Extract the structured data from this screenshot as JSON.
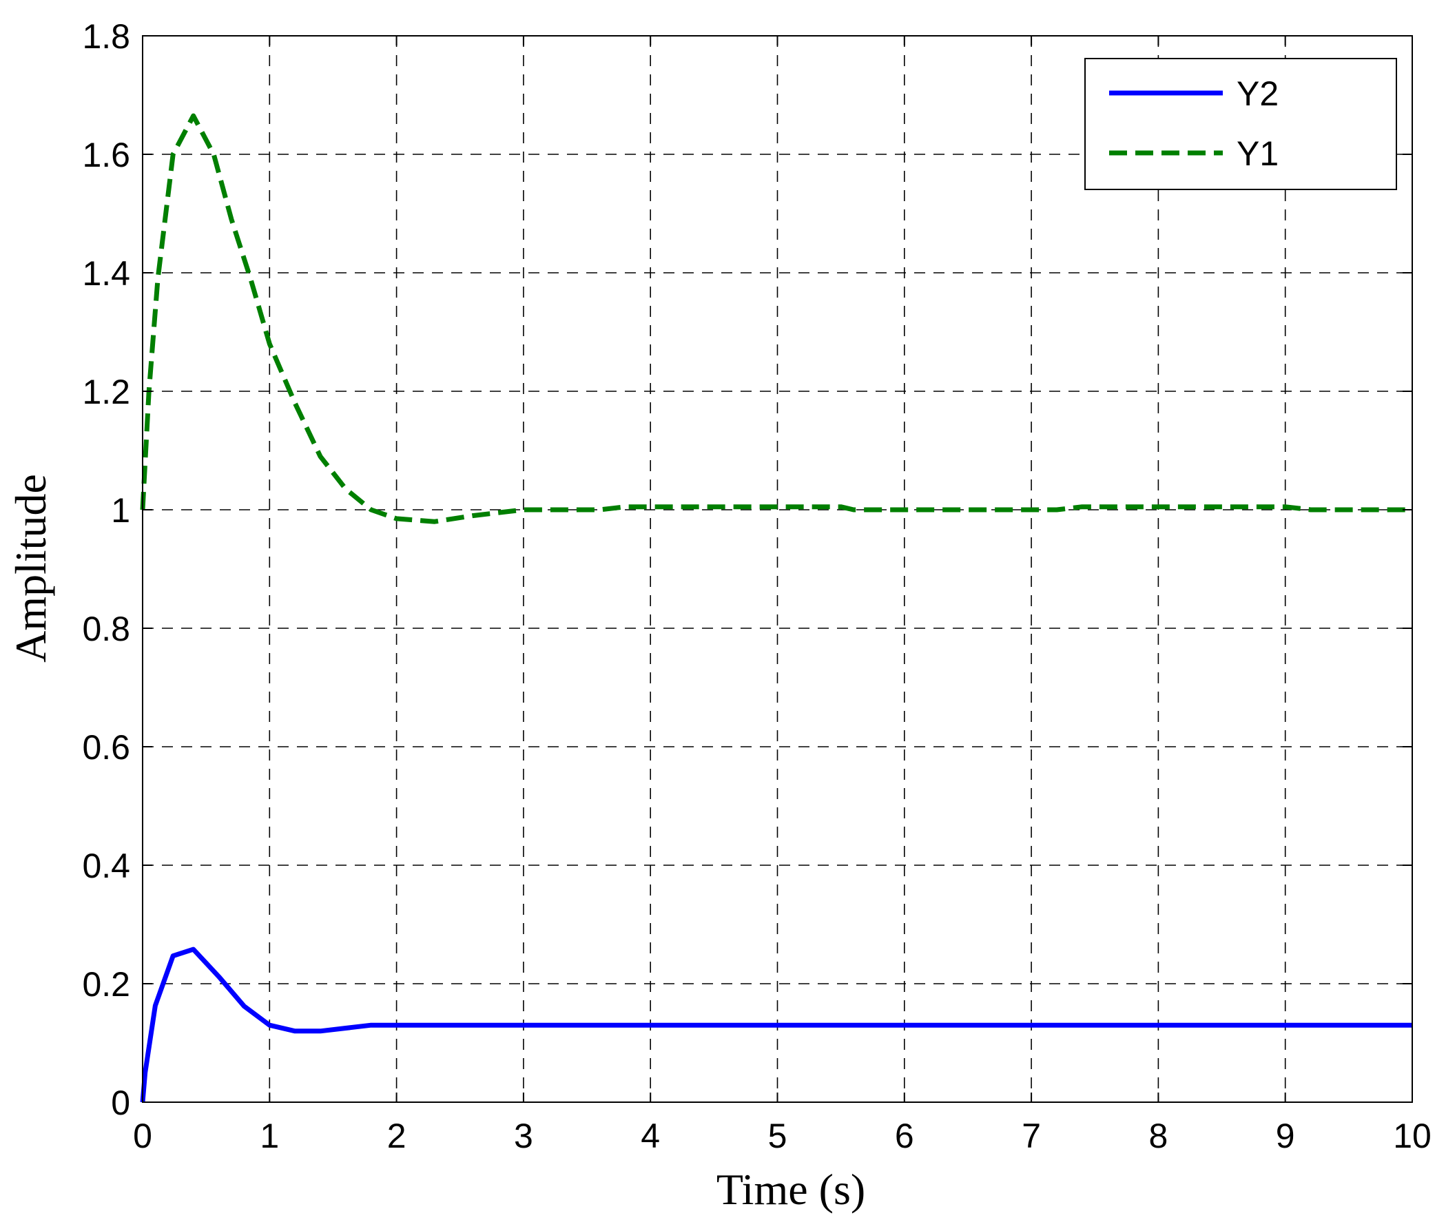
{
  "chart_data": {
    "type": "line",
    "title": "",
    "xlabel": "Time (s)",
    "ylabel": "Amplitude",
    "xlim": [
      0,
      10
    ],
    "ylim": [
      0,
      1.8
    ],
    "xticks": [
      0,
      1,
      2,
      3,
      4,
      5,
      6,
      7,
      8,
      9,
      10
    ],
    "yticks": [
      0,
      0.2,
      0.4,
      0.6,
      0.8,
      1,
      1.2,
      1.4,
      1.6,
      1.8
    ],
    "xtick_labels": [
      "0",
      "1",
      "2",
      "3",
      "4",
      "5",
      "6",
      "7",
      "8",
      "9",
      "10"
    ],
    "ytick_labels": [
      "0",
      "0.2",
      "0.4",
      "0.6",
      "0.8",
      "1",
      "1.2",
      "1.4",
      "1.6",
      "1.8"
    ],
    "grid": true,
    "legend_position": "top-right",
    "series": [
      {
        "name": "Y2",
        "color": "#0000ff",
        "style": "solid",
        "x": [
          0,
          0.02,
          0.1,
          0.24,
          0.4,
          0.6,
          0.8,
          1.0,
          1.2,
          1.4,
          1.6,
          1.8,
          2.0,
          2.5,
          3,
          4,
          5,
          6,
          7,
          8,
          9,
          10
        ],
        "y": [
          0,
          0.05,
          0.163,
          0.247,
          0.258,
          0.212,
          0.162,
          0.13,
          0.12,
          0.12,
          0.125,
          0.13,
          0.13,
          0.13,
          0.13,
          0.13,
          0.13,
          0.13,
          0.13,
          0.13,
          0.13,
          0.13
        ]
      },
      {
        "name": "Y1",
        "color": "#007f00",
        "style": "dashed",
        "x": [
          0,
          0.05,
          0.12,
          0.24,
          0.4,
          0.56,
          0.7,
          0.85,
          1.0,
          1.2,
          1.4,
          1.6,
          1.8,
          2.0,
          2.3,
          2.6,
          3.0,
          3.6,
          3.8,
          4.5,
          5.0,
          5.5,
          5.6,
          6.5,
          7.2,
          7.4,
          8.5,
          9.0,
          9.2,
          10.0
        ],
        "y": [
          1.0,
          1.2,
          1.39,
          1.6,
          1.665,
          1.6,
          1.49,
          1.39,
          1.28,
          1.18,
          1.09,
          1.035,
          1.0,
          0.985,
          0.98,
          0.99,
          1.0,
          1.0,
          1.005,
          1.005,
          1.005,
          1.005,
          1.0,
          1.0,
          1.0,
          1.005,
          1.005,
          1.005,
          1.0,
          1.0
        ]
      }
    ]
  }
}
